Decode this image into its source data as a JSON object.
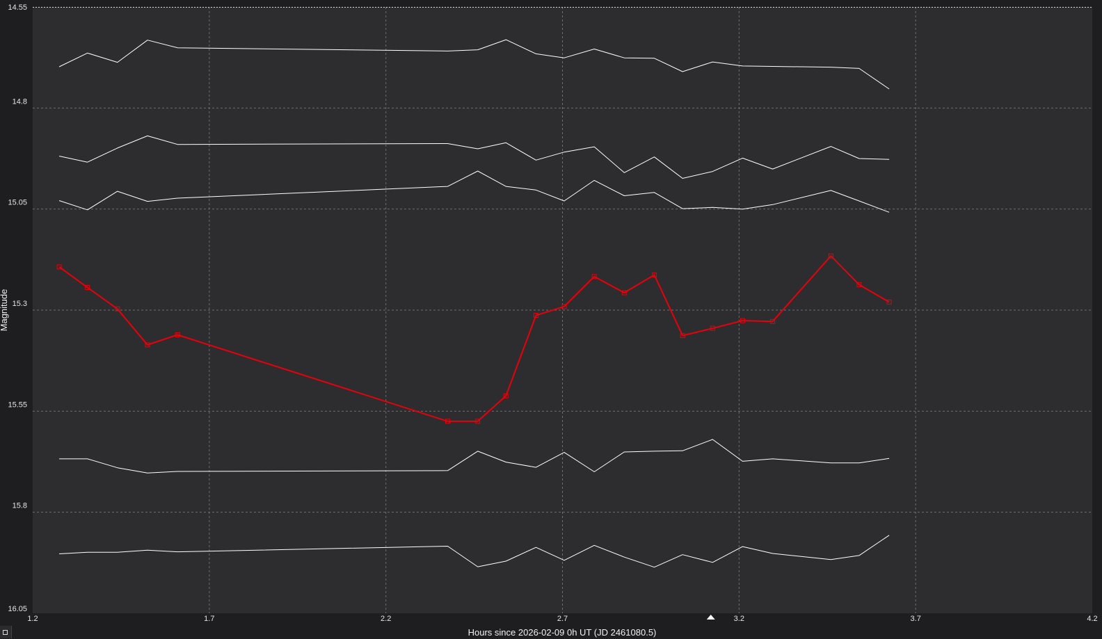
{
  "chart_data": {
    "type": "line",
    "title": "",
    "xlabel": "Hours since 2026-02-09 0h UT (JD 2461080.5)",
    "ylabel": "Magnitude",
    "xlim": [
      1.2,
      4.2
    ],
    "ylim": [
      14.55,
      16.05
    ],
    "y_inverted": true,
    "grid": true,
    "x_ticks": [
      "1.2",
      "1.7",
      "2.2",
      "2.7",
      "3.2",
      "3.7",
      "4.2"
    ],
    "y_ticks": [
      "14.55",
      "14.8",
      "15.05",
      "15.3",
      "15.55",
      "15.8",
      "16.05"
    ],
    "x_marker": 3.12,
    "x": [
      1.275,
      1.355,
      1.44,
      1.525,
      1.61,
      2.375,
      2.46,
      2.54,
      2.625,
      2.705,
      2.79,
      2.875,
      2.96,
      3.04,
      3.125,
      3.21,
      3.295,
      3.46,
      3.54,
      3.625
    ],
    "series": [
      {
        "color": "#ffffff",
        "width": 1,
        "markers": false,
        "values": [
          14.698,
          14.664,
          14.687,
          14.632,
          14.651,
          14.659,
          14.656,
          14.631,
          14.666,
          14.676,
          14.654,
          14.676,
          14.677,
          14.71,
          14.686,
          14.696,
          14.697,
          14.699,
          14.702,
          14.753
        ]
      },
      {
        "color": "#ffffff",
        "width": 1,
        "markers": false,
        "values": [
          14.919,
          14.934,
          14.899,
          14.869,
          14.89,
          14.888,
          14.901,
          14.886,
          14.929,
          14.909,
          14.896,
          14.96,
          14.921,
          14.974,
          14.957,
          14.924,
          14.951,
          14.895,
          14.925,
          14.927
        ]
      },
      {
        "color": "#ffffff",
        "width": 1,
        "markers": false,
        "values": [
          15.029,
          15.052,
          15.006,
          15.031,
          15.023,
          14.994,
          14.956,
          14.994,
          15.003,
          15.03,
          14.979,
          15.017,
          15.009,
          15.049,
          15.046,
          15.05,
          15.039,
          15.004,
          15.03,
          15.058
        ]
      },
      {
        "color": "#e8000a",
        "width": 2,
        "markers": true,
        "values": [
          15.193,
          15.244,
          15.297,
          15.386,
          15.361,
          15.575,
          15.575,
          15.512,
          15.313,
          15.291,
          15.217,
          15.257,
          15.213,
          15.363,
          15.345,
          15.326,
          15.328,
          15.166,
          15.237,
          15.28
        ]
      },
      {
        "color": "#ffffff",
        "width": 1,
        "markers": false,
        "values": [
          15.668,
          15.668,
          15.69,
          15.703,
          15.699,
          15.697,
          15.649,
          15.676,
          15.689,
          15.652,
          15.7,
          15.651,
          15.649,
          15.648,
          15.62,
          15.674,
          15.668,
          15.678,
          15.678,
          15.667
        ]
      },
      {
        "color": "#ffffff",
        "width": 1,
        "markers": false,
        "values": [
          15.903,
          15.899,
          15.899,
          15.894,
          15.898,
          15.884,
          15.935,
          15.921,
          15.887,
          15.919,
          15.882,
          15.911,
          15.936,
          15.905,
          15.924,
          15.885,
          15.902,
          15.917,
          15.907,
          15.857
        ]
      }
    ]
  },
  "colors": {
    "background": "#1e1e20",
    "plot_area": "#2d2d30",
    "grid": "#6e6e70",
    "target": "#e8000a"
  }
}
